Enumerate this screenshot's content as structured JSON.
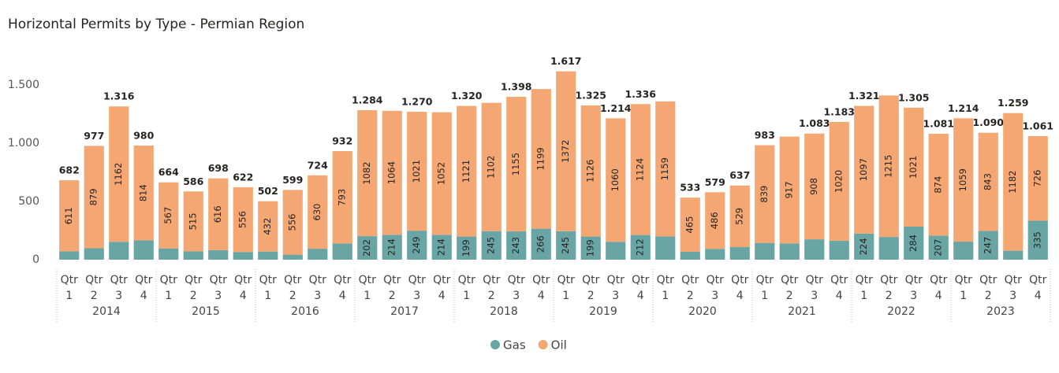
{
  "chart_data": {
    "type": "stacked_bar",
    "title": "Horizontal Permits by Type - Permian Region",
    "categories": [
      "Qtr 1",
      "Qtr 2",
      "Qtr 3",
      "Qtr 4",
      "Qtr 1",
      "Qtr 2",
      "Qtr 3",
      "Qtr 4",
      "Qtr 1",
      "Qtr 2",
      "Qtr 3",
      "Qtr 4",
      "Qtr 1",
      "Qtr 2",
      "Qtr 3",
      "Qtr 4",
      "Qtr 1",
      "Qtr 2",
      "Qtr 3",
      "Qtr 4",
      "Qtr 1",
      "Qtr 2",
      "Qtr 3",
      "Qtr 4",
      "Qtr 1",
      "Qtr 2",
      "Qtr 3",
      "Qtr 4",
      "Qtr 1",
      "Qtr 2",
      "Qtr 3",
      "Qtr 4",
      "Qtr 1",
      "Qtr 2",
      "Qtr 3",
      "Qtr 4",
      "Qtr 1",
      "Qtr 2",
      "Qtr 3",
      "Qtr 4"
    ],
    "years": [
      "2014",
      "2015",
      "2016",
      "2017",
      "2018",
      "2019",
      "2020",
      "2021",
      "2022",
      "2023"
    ],
    "series": [
      {
        "name": "Gas",
        "color": "#6aa5a5",
        "values": [
          71,
          98,
          154,
          166,
          97,
          71,
          82,
          66,
          70,
          43,
          94,
          139,
          202,
          214,
          249,
          214,
          199,
          245,
          243,
          266,
          245,
          199,
          154,
          212,
          200,
          68,
          93,
          108,
          144,
          140,
          175,
          163,
          224,
          195,
          284,
          207,
          155,
          247,
          77,
          335
        ],
        "value_labels": [
          null,
          null,
          null,
          null,
          null,
          null,
          null,
          null,
          null,
          null,
          null,
          null,
          "202",
          "214",
          "249",
          "214",
          "199",
          "245",
          "243",
          "266",
          "245",
          "199",
          null,
          "212",
          null,
          null,
          null,
          null,
          null,
          null,
          null,
          null,
          "224",
          null,
          "284",
          "207",
          null,
          "247",
          null,
          "335"
        ]
      },
      {
        "name": "Oil",
        "color": "#f4a772",
        "values": [
          611,
          879,
          1162,
          814,
          567,
          515,
          616,
          556,
          432,
          556,
          630,
          793,
          1082,
          1064,
          1021,
          1052,
          1121,
          1102,
          1155,
          1199,
          1372,
          1126,
          1060,
          1124,
          1159,
          465,
          486,
          529,
          839,
          917,
          908,
          1020,
          1097,
          1215,
          1021,
          874,
          1059,
          843,
          1182,
          726
        ],
        "value_labels": [
          "611",
          "879",
          "1162",
          "814",
          "567",
          "515",
          "616",
          "556",
          "432",
          "556",
          "630",
          "793",
          "1082",
          "1064",
          "1021",
          "1052",
          "1121",
          "1102",
          "1155",
          "1199",
          "1372",
          "1126",
          "1060",
          "1124",
          "1159",
          "465",
          "486",
          "529",
          "839",
          "917",
          "908",
          "1020",
          "1097",
          "1215",
          "1021",
          "874",
          "1059",
          "843",
          "1182",
          "726"
        ]
      }
    ],
    "totals": {
      "values": [
        682,
        977,
        1316,
        980,
        664,
        586,
        698,
        622,
        502,
        599,
        724,
        932,
        1284,
        1278,
        1270,
        1266,
        1320,
        1347,
        1398,
        1465,
        1617,
        1325,
        1214,
        1336,
        1359,
        533,
        579,
        637,
        983,
        1057,
        1083,
        1183,
        1321,
        1410,
        1305,
        1081,
        1214,
        1090,
        1259,
        1061
      ],
      "value_labels": [
        "682",
        "977",
        "1.316",
        "980",
        "664",
        "586",
        "698",
        "622",
        "502",
        "599",
        "724",
        "932",
        "1.284",
        null,
        "1.270",
        null,
        "1.320",
        null,
        "1.398",
        null,
        "1.617",
        "1.325",
        "1.214",
        "1.336",
        null,
        "533",
        "579",
        "637",
        "983",
        null,
        "1.083",
        "1.183",
        "1.321",
        null,
        "1.305",
        "1.081",
        "1.214",
        "1.090",
        "1.259",
        "1.061"
      ]
    },
    "ylim": [
      0,
      1750
    ],
    "yticks": [
      0,
      500,
      {
        "value": 1000,
        "label": "1.000"
      },
      {
        "value": 1500,
        "label": "1.500"
      }
    ],
    "grid": false,
    "legend": "bottom"
  }
}
